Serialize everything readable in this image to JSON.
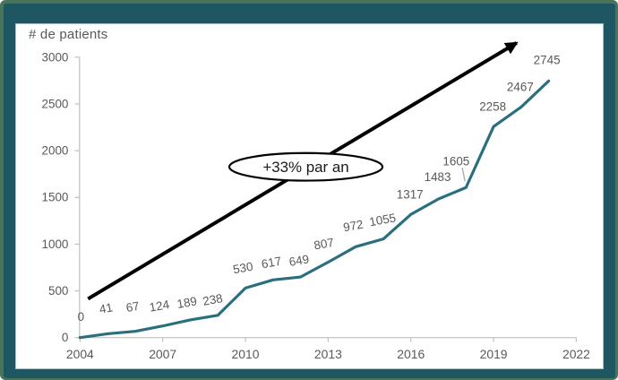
{
  "window": {
    "frame_color": "#1E5661",
    "frame_rim_color": "#4A735C",
    "panel_background": "#FFFFFF"
  },
  "chart_data": {
    "type": "line",
    "title": "# de patients",
    "x": [
      2004,
      2005,
      2006,
      2007,
      2008,
      2009,
      2010,
      2011,
      2012,
      2013,
      2014,
      2015,
      2016,
      2017,
      2018,
      2019,
      2020,
      2021
    ],
    "values": [
      0,
      41,
      67,
      124,
      189,
      238,
      530,
      617,
      649,
      807,
      972,
      1055,
      1317,
      1483,
      1605,
      2258,
      2467,
      2745
    ],
    "point_labels": [
      "0",
      "41",
      "67",
      "124",
      "189",
      "238",
      "530",
      "617",
      "649",
      "807",
      "972",
      "1055",
      "1317",
      "1483",
      "1605",
      "2258",
      "2467",
      "2745"
    ],
    "x_ticks": [
      "2004",
      "2007",
      "2010",
      "2013",
      "2016",
      "2019",
      "2022"
    ],
    "x_tick_values": [
      2004,
      2007,
      2010,
      2013,
      2016,
      2019,
      2022
    ],
    "y_ticks": [
      "3000",
      "2500",
      "2000",
      "1500",
      "1000",
      "500",
      "0"
    ],
    "y_tick_values": [
      3000,
      2500,
      2000,
      1500,
      1000,
      500,
      0
    ],
    "xlim": [
      2004,
      2022
    ],
    "ylim": [
      0,
      3000
    ],
    "grid": false,
    "legend": "none",
    "series_color": "#2B6F7F",
    "axis_color": "#BFBFBF",
    "label_color": "#595959",
    "annotation": {
      "text": "+33% par an",
      "shape": "ellipse",
      "fill": "#FFFFFF",
      "stroke": "#000000"
    },
    "trend_arrow": {
      "color": "#000000",
      "direction": "up-right"
    }
  }
}
